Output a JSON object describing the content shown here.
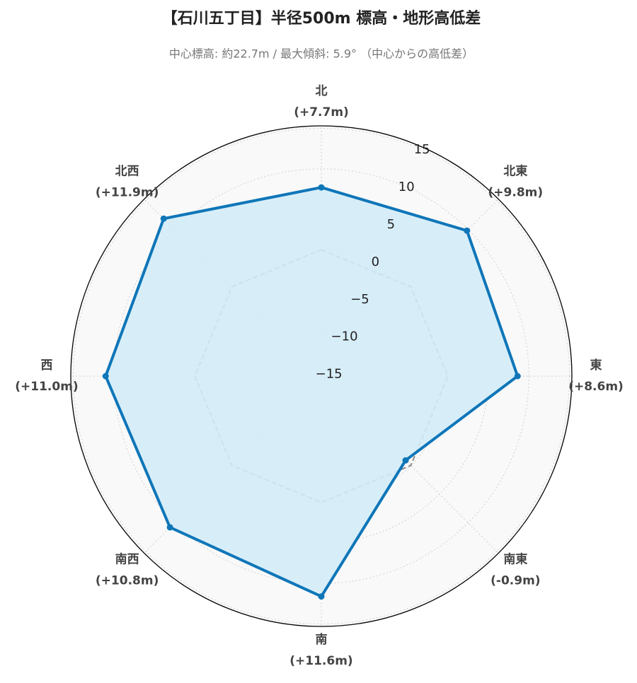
{
  "chart_data": {
    "type": "radar",
    "title": "【石川五丁目】半径500m 標高・地形高低差",
    "subtitle": "中心標高: 約22.7m / 最大傾斜: 5.9° （中心からの高低差）",
    "categories": [
      "北",
      "北東",
      "東",
      "南東",
      "南",
      "南西",
      "西",
      "北西"
    ],
    "values": [
      7.7,
      9.8,
      8.6,
      -0.9,
      11.6,
      10.8,
      11.0,
      11.9
    ],
    "value_labels": [
      "(+7.7m)",
      "(+9.8m)",
      "(+8.6m)",
      "(-0.9m)",
      "(+11.6m)",
      "(+10.8m)",
      "(+11.0m)",
      "(+11.9m)"
    ],
    "color": "#0f76b8",
    "fill_color": "#d3ecf8",
    "reference_value": 0,
    "ylim": [
      -15.6,
      15.3
    ],
    "yticks": [
      {
        "value": -15,
        "label": "−15"
      },
      {
        "value": -10,
        "label": "−10"
      },
      {
        "value": -5,
        "label": "−5"
      },
      0,
      5,
      10,
      15
    ],
    "grid": true
  }
}
